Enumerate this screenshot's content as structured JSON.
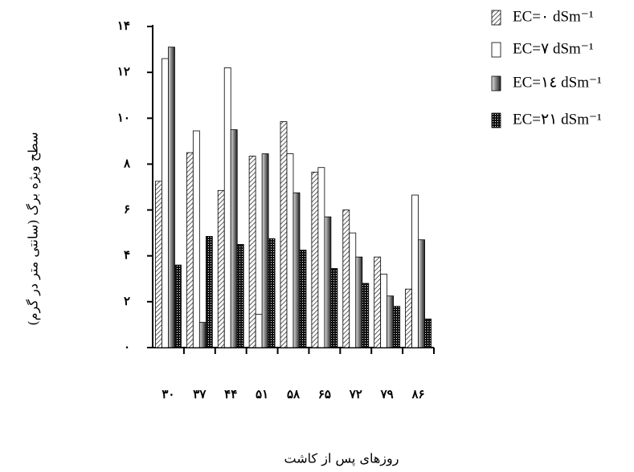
{
  "chart_data": {
    "type": "bar",
    "y_label": "سطح ویژه برگ (سانتی متر در گرم)",
    "x_label": "روزهای پس از کاشت",
    "categories": [
      "۳۰",
      "۳۷",
      "۴۴",
      "۵۱",
      "۵۸",
      "۶۵",
      "۷۲",
      "۷۹",
      "۸۶"
    ],
    "series": [
      {
        "name": "EC=۰ dSm⁻¹",
        "color": "#333333",
        "fill": "hatch",
        "values": [
          7.25,
          8.5,
          6.85,
          8.35,
          9.85,
          7.65,
          6.0,
          3.95,
          2.55
        ]
      },
      {
        "name": "EC=۷ dSm⁻¹",
        "color": "#ffffff",
        "fill": "solid",
        "values": [
          12.6,
          9.45,
          12.2,
          1.45,
          8.45,
          7.85,
          5.0,
          3.2,
          6.65
        ]
      },
      {
        "name": "EC=۱٤ dSm⁻¹",
        "color": "#222222",
        "fill": "gradient",
        "values": [
          13.1,
          1.1,
          9.5,
          8.45,
          6.75,
          5.7,
          3.95,
          2.25,
          4.7
        ]
      },
      {
        "name": "EC=۲۱ dSm⁻¹",
        "color": "#111111",
        "fill": "dots",
        "values": [
          3.6,
          4.85,
          4.5,
          4.75,
          4.25,
          3.45,
          2.8,
          1.8,
          1.25
        ]
      }
    ],
    "ylim": [
      0,
      14
    ],
    "yticks": [
      {
        "value": 0,
        "label": "۰"
      },
      {
        "value": 2,
        "label": "۲"
      },
      {
        "value": 4,
        "label": "۴"
      },
      {
        "value": 6,
        "label": "۶"
      },
      {
        "value": 8,
        "label": "۸"
      },
      {
        "value": 10,
        "label": "۱۰"
      },
      {
        "value": 12,
        "label": "۱۲"
      },
      {
        "value": 14,
        "label": "۱۴"
      }
    ],
    "grid": false,
    "legend": "top-right"
  }
}
